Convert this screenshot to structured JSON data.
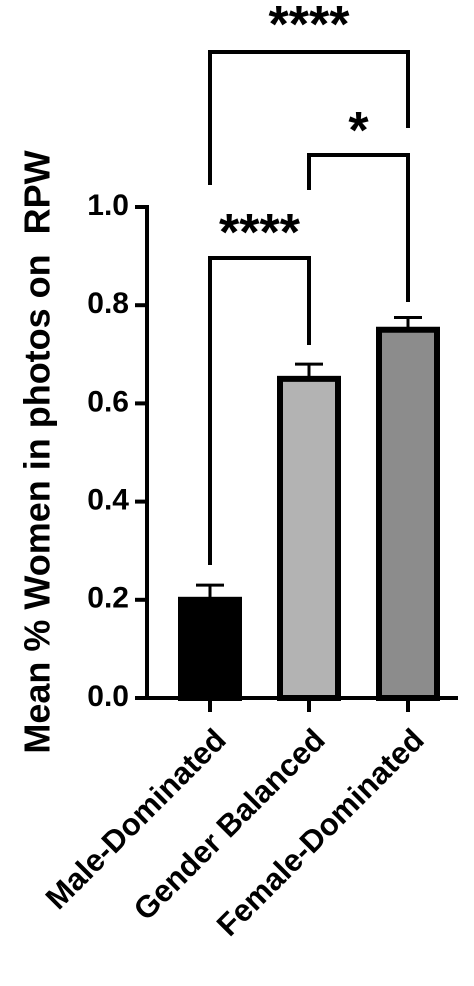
{
  "chart_data": {
    "type": "bar",
    "y_label": "Mean % Women in photos on  RPW",
    "categories": [
      "Male-Dominated",
      "Gender Balanced",
      "Female-Dominated"
    ],
    "values": [
      0.2,
      0.65,
      0.75
    ],
    "errors": [
      0.03,
      0.03,
      0.025
    ],
    "colors": [
      "#000000",
      "#b3b3b3",
      "#8c8c8c"
    ],
    "ylim": [
      0,
      1.0
    ],
    "yticks": [
      {
        "value": 0,
        "label": "0.0"
      },
      {
        "value": 0.2,
        "label": "0.2"
      },
      {
        "value": 0.4,
        "label": "0.4"
      },
      {
        "value": 0.6,
        "label": "0.6"
      },
      {
        "value": 0.8,
        "label": "0.8"
      },
      {
        "value": 1.0,
        "label": "1.0"
      }
    ],
    "comparisons": [
      {
        "label": "****",
        "groups": [
          0,
          1
        ]
      },
      {
        "label": "*",
        "groups": [
          1,
          2
        ]
      },
      {
        "label": "****",
        "groups": [
          0,
          2
        ]
      }
    ]
  }
}
